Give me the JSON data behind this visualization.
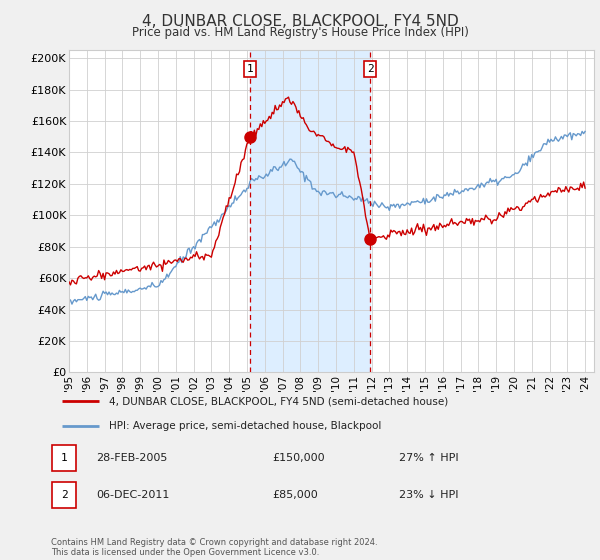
{
  "title": "4, DUNBAR CLOSE, BLACKPOOL, FY4 5ND",
  "subtitle": "Price paid vs. HM Land Registry's House Price Index (HPI)",
  "ylabel_ticks": [
    "£0",
    "£20K",
    "£40K",
    "£60K",
    "£80K",
    "£100K",
    "£120K",
    "£140K",
    "£160K",
    "£180K",
    "£200K"
  ],
  "ytick_values": [
    0,
    20000,
    40000,
    60000,
    80000,
    100000,
    120000,
    140000,
    160000,
    180000,
    200000
  ],
  "ylim": [
    0,
    205000
  ],
  "xtick_years": [
    1995,
    1996,
    1997,
    1998,
    1999,
    2000,
    2001,
    2002,
    2003,
    2004,
    2005,
    2006,
    2007,
    2008,
    2009,
    2010,
    2011,
    2012,
    2013,
    2014,
    2015,
    2016,
    2017,
    2018,
    2019,
    2020,
    2021,
    2022,
    2023,
    2024
  ],
  "legend_line1": "4, DUNBAR CLOSE, BLACKPOOL, FY4 5ND (semi-detached house)",
  "legend_line2": "HPI: Average price, semi-detached house, Blackpool",
  "annotation1_date": "28-FEB-2005",
  "annotation1_price": "£150,000",
  "annotation1_hpi": "27% ↑ HPI",
  "annotation2_date": "06-DEC-2011",
  "annotation2_price": "£85,000",
  "annotation2_hpi": "23% ↓ HPI",
  "footer": "Contains HM Land Registry data © Crown copyright and database right 2024.\nThis data is licensed under the Open Government Licence v3.0.",
  "hpi_color": "#6699cc",
  "price_color": "#cc0000",
  "vline_color": "#cc0000",
  "shade_color": "#ddeeff",
  "bg_color": "#f0f0f0",
  "marker1_x_year": 2005.17,
  "marker1_y": 150000,
  "marker2_x_year": 2011.92,
  "marker2_y": 85000,
  "vline1_x": 2005.17,
  "vline2_x": 2011.92
}
